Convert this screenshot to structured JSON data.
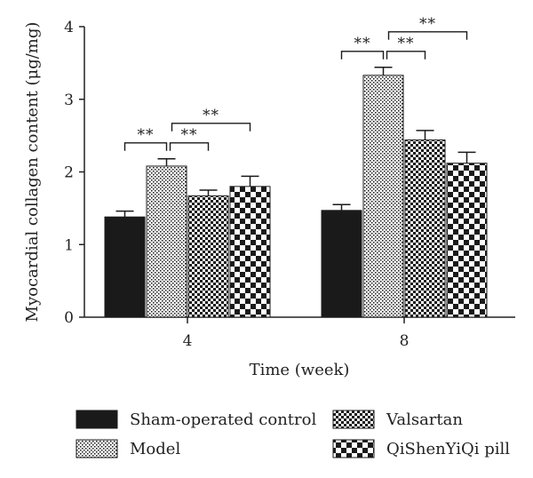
{
  "chart_data": {
    "type": "bar",
    "categories": [
      "4",
      "8"
    ],
    "xlabel": "Time (week)",
    "ylabel": "Myocardial collagen content (μg/mg)",
    "ylim": [
      0,
      4
    ],
    "yticks": [
      "0",
      "1",
      "2",
      "3",
      "4"
    ],
    "grid": false,
    "legend_position": "bottom",
    "series": [
      {
        "name": "Sham-operated control",
        "pattern": "solid",
        "values": [
          1.38,
          1.47
        ],
        "errors": [
          0.08,
          0.08
        ]
      },
      {
        "name": "Model",
        "pattern": "fine-dots",
        "values": [
          2.08,
          3.33
        ],
        "errors": [
          0.1,
          0.11
        ]
      },
      {
        "name": "Valsartan",
        "pattern": "fine-checker",
        "values": [
          1.67,
          2.44
        ],
        "errors": [
          0.08,
          0.13
        ]
      },
      {
        "name": "QiShenYiQi pill",
        "pattern": "coarse-checker",
        "values": [
          1.8,
          2.12
        ],
        "errors": [
          0.14,
          0.15
        ]
      }
    ],
    "significance": [
      {
        "group": "4",
        "from": 0,
        "to": 1,
        "label": "**"
      },
      {
        "group": "4",
        "from": 1,
        "to": 2,
        "label": "**"
      },
      {
        "group": "4",
        "from": 1,
        "to": 3,
        "label": "**"
      },
      {
        "group": "8",
        "from": 0,
        "to": 1,
        "label": "**"
      },
      {
        "group": "8",
        "from": 1,
        "to": 2,
        "label": "**"
      },
      {
        "group": "8",
        "from": 1,
        "to": 3,
        "label": "**"
      }
    ],
    "colors": {
      "bar_dark": "#1a1a1a",
      "axis": "#222222"
    }
  }
}
